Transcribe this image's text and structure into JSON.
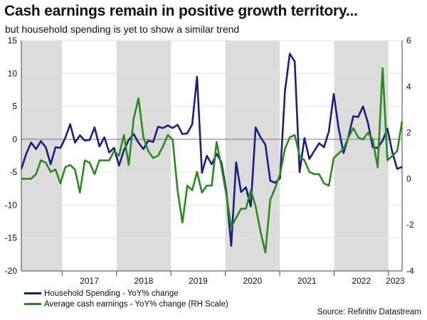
{
  "header": {
    "title": "Cash earnings remain in positive growth territory...",
    "subtitle": "but household spending is yet to show a similar trend"
  },
  "source": "Source: Refinitiv Datastream",
  "colors": {
    "spending": "#1a1f80",
    "earnings": "#2a8a1e",
    "shade": "#dcdcdc",
    "axis": "#444444"
  },
  "chart_data": {
    "type": "line",
    "title": "Cash earnings remain in positive growth territory...",
    "subtitle": "but household spending is yet to show a similar trend",
    "x_start": "2016-04",
    "x_end": "2023-04",
    "year_labels": [
      "2017",
      "2018",
      "2019",
      "2020",
      "2021",
      "2022",
      "2023"
    ],
    "ylim_left": [
      -20,
      15
    ],
    "yticks_left": [
      15,
      10,
      5,
      0,
      -5,
      -10,
      -15,
      -20
    ],
    "ylim_right": [
      -4,
      6
    ],
    "yticks_right": [
      6,
      4,
      2,
      0,
      -2,
      -4
    ],
    "shaded_years": [
      "2016",
      "2018",
      "2020",
      "2022"
    ],
    "series": [
      {
        "name": "Household Spending - YoY% change",
        "axis": "left",
        "values": [
          -4.5,
          -2.2,
          -0.5,
          -1.5,
          -0.3,
          -1.2,
          -3.8,
          -1.2,
          -1.3,
          0.2,
          2.3,
          -0.5,
          0.6,
          -0.2,
          -0.1,
          1.8,
          -1.1,
          0.3,
          -2.0,
          -1.3,
          -4.0,
          -1.7,
          -0.1,
          0.8,
          -0.5,
          -1.5,
          -0.2,
          -0.4,
          1.9,
          1.7,
          2.1,
          1.7,
          2.2,
          0.8,
          0.9,
          2.3,
          9.5,
          -5.1,
          -2.5,
          -3.8,
          -2.2,
          -3.5,
          -8.0,
          -16.2,
          -3.5,
          -8.0,
          -7.3,
          -10.2,
          1.8,
          0.3,
          -0.8,
          -6.3,
          -6.6,
          -5.9,
          7.3,
          13.0,
          11.8,
          -5.0,
          0.2,
          -3.0,
          -1.8,
          -0.6,
          -1.2,
          1.2,
          6.9,
          1.7,
          -2.1,
          0.4,
          3.5,
          3.4,
          5.0,
          2.5,
          -1.2,
          -1.3,
          -0.2,
          1.6,
          -2.0,
          -4.5,
          -4.2
        ]
      },
      {
        "name": "Average cash earnings - YoY% change (RH Scale)",
        "axis": "right",
        "values": [
          0.0,
          0.0,
          0.0,
          0.2,
          0.8,
          0.7,
          0.3,
          0.4,
          -0.2,
          0.5,
          0.6,
          0.4,
          -0.6,
          0.8,
          0.7,
          0.2,
          0.8,
          0.8,
          0.8,
          1.2,
          1.0,
          1.9,
          0.6,
          2.6,
          3.5,
          1.8,
          1.2,
          0.9,
          1.0,
          1.4,
          1.9,
          1.7,
          -0.5,
          -1.9,
          -0.3,
          -0.5,
          0.3,
          -0.6,
          -0.3,
          -0.3,
          1.6,
          0.5,
          -0.7,
          -2.1,
          -1.7,
          -1.3,
          -1.3,
          -0.5,
          -1.2,
          -2.3,
          -3.2,
          -0.9,
          -0.4,
          0.2,
          1.3,
          1.8,
          1.9,
          1.0,
          0.8,
          0.3,
          0.2,
          0.2,
          -0.2,
          -0.3,
          0.9,
          1.1,
          1.3,
          1.8,
          2.2,
          1.8,
          1.7,
          2.0,
          1.7,
          0.5,
          4.8,
          0.8,
          1.0,
          1.2,
          2.5
        ]
      }
    ]
  }
}
